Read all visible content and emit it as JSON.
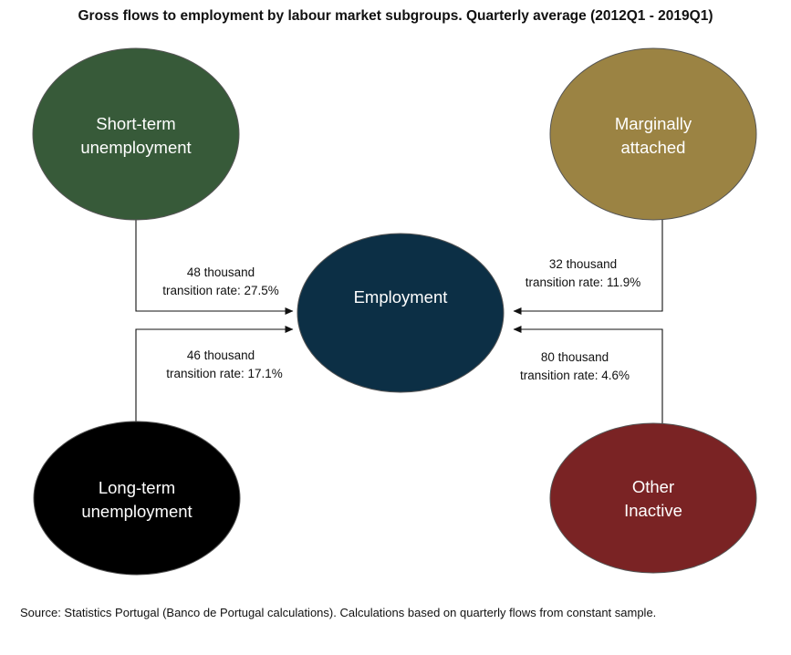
{
  "title": "Gross flows to employment by labour market subgroups. Quarterly average (2012Q1 - 2019Q1)",
  "nodes": {
    "short_term": {
      "lines": [
        "Short-term",
        "unemployment"
      ],
      "color": "#375a39"
    },
    "marginally": {
      "lines": [
        "Marginally",
        "attached"
      ],
      "color": "#9b8343"
    },
    "employment": {
      "lines": [
        "Employment"
      ],
      "color": "#0c2f45"
    },
    "long_term": {
      "lines": [
        "Long-term",
        "unemployment"
      ],
      "color": "#000000"
    },
    "other": {
      "lines": [
        "Other",
        "Inactive"
      ],
      "color": "#7a2324"
    }
  },
  "flows": {
    "short_term": {
      "amount": "48 thousand",
      "rate": "transition rate: 27.5%"
    },
    "marginally": {
      "amount": "32 thousand",
      "rate": "transition rate: 11.9%"
    },
    "long_term": {
      "amount": "46 thousand",
      "rate": "transition rate: 17.1%"
    },
    "other": {
      "amount": "80 thousand",
      "rate": "transition rate: 4.6%"
    }
  },
  "source": "Source: Statistics Portugal  (Banco de Portugal calculations). Calculations based on quarterly flows from constant sample."
}
